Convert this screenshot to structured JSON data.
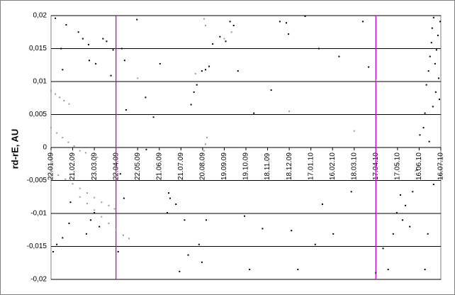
{
  "chart_data": {
    "type": "scatter",
    "y_label": "rd-rE, AU",
    "xlim": [
      0,
      540
    ],
    "ylim": [
      -0.02,
      0.02
    ],
    "xticks": [
      {
        "value": 0,
        "label": "22.01.09"
      },
      {
        "value": 30,
        "label": "21.02.09"
      },
      {
        "value": 60,
        "label": "23.03.09"
      },
      {
        "value": 90,
        "label": "22.04.09"
      },
      {
        "value": 120,
        "label": "22.05.09"
      },
      {
        "value": 150,
        "label": "21.06.09"
      },
      {
        "value": 180,
        "label": "21.07.09"
      },
      {
        "value": 210,
        "label": "20.08.09"
      },
      {
        "value": 240,
        "label": "19.09.09"
      },
      {
        "value": 270,
        "label": "19.10.09"
      },
      {
        "value": 300,
        "label": "18.11.09"
      },
      {
        "value": 330,
        "label": "18.12.09"
      },
      {
        "value": 360,
        "label": "17.01.10"
      },
      {
        "value": 390,
        "label": "16.02.10"
      },
      {
        "value": 420,
        "label": "18.03.10"
      },
      {
        "value": 450,
        "label": "17.04.10"
      },
      {
        "value": 480,
        "label": "17.05.10"
      },
      {
        "value": 510,
        "label": "16.06.10"
      },
      {
        "value": 540,
        "label": "16.07.10"
      }
    ],
    "yticks": [
      {
        "value": 0.02,
        "label": "0,02"
      },
      {
        "value": 0.015,
        "label": "0,015"
      },
      {
        "value": 0.01,
        "label": "0,01"
      },
      {
        "value": 0.005,
        "label": "0,005"
      },
      0,
      {
        "value": -0.005,
        "label": "-0,005"
      },
      {
        "value": -0.01,
        "label": "-0,01"
      },
      {
        "value": -0.015,
        "label": "-0,015"
      },
      {
        "value": -0.02,
        "label": "-0,02"
      }
    ],
    "grid": true,
    "vlines": [
      90,
      450
    ],
    "vline_color": "#cc00cc",
    "series": [
      {
        "color": "#000000",
        "x": [
          6,
          21,
          14,
          16,
          38,
          44,
          52,
          53,
          62,
          72,
          77,
          83,
          86,
          98,
          102,
          104,
          119,
          131,
          132,
          142,
          151,
          161,
          163,
          165,
          173,
          178,
          185,
          190,
          194,
          198,
          202,
          209,
          214,
          219,
          205,
          209,
          215,
          224,
          234,
          242,
          248,
          253,
          259,
          268,
          275,
          281,
          293,
          305,
          317,
          326,
          329,
          333,
          342,
          352,
          366,
          371,
          376,
          391,
          399,
          416,
          432,
          440,
          450,
          460,
          467,
          474,
          479,
          484,
          487,
          491,
          497,
          501,
          507,
          511,
          516,
          518,
          520,
          523,
          525,
          527,
          528,
          530,
          532,
          534,
          536,
          537,
          538,
          539,
          533,
          529,
          524,
          530,
          522,
          518,
          3,
          8,
          16,
          25,
          27,
          49,
          55,
          67,
          60,
          93,
          101,
          96
        ],
        "values": [
          0.0196,
          0.0186,
          0.015,
          0.0118,
          0.0175,
          0.0165,
          0.0156,
          0.0132,
          0.0127,
          0.0165,
          0.0161,
          0.0109,
          0.0148,
          0.015,
          0.0132,
          0.0057,
          0.0194,
          0.0076,
          -0.0003,
          0.0046,
          0.0127,
          -0.0099,
          -0.0069,
          -0.0077,
          -0.0086,
          -0.0188,
          -0.011,
          -0.0163,
          0.0065,
          0.0084,
          0.0095,
          0.0116,
          0.0118,
          0.0123,
          -0.0147,
          -0.0174,
          -0.011,
          0.0157,
          0.0168,
          0.0161,
          0.0191,
          0.0185,
          0.0116,
          -0.0104,
          -0.0185,
          0.0052,
          -0.0123,
          0.0087,
          0.0191,
          0.0189,
          0.0172,
          -0.0126,
          -0.0185,
          0.0199,
          -0.0147,
          0.015,
          -0.0086,
          -0.0131,
          0.0138,
          -0.0067,
          0.0191,
          0.0122,
          -0.019,
          -0.0153,
          -0.0185,
          -0.0131,
          -0.0099,
          -0.0072,
          -0.011,
          -0.0088,
          -0.012,
          -0.0067,
          -0.0034,
          0.0019,
          0.003,
          0.0052,
          0.0095,
          0.0116,
          0.0138,
          0.0159,
          0.0181,
          0.0197,
          0.0127,
          0.0148,
          0.017,
          0.0105,
          0.0073,
          0.0191,
          0.0084,
          0.0062,
          0.0009,
          -0.0056,
          -0.0131,
          -0.0185,
          -0.0158,
          -0.0147,
          -0.0137,
          -0.0115,
          -0.0083,
          -0.0131,
          -0.011,
          -0.012,
          -0.0099,
          -0.0158,
          -0.0077,
          -0.004
        ]
      },
      {
        "color": "#9a9a9a",
        "x": [
          0,
          6,
          12,
          18,
          25,
          0,
          8,
          16,
          24,
          32,
          40,
          48,
          56,
          64,
          0,
          10,
          20,
          30,
          40,
          50,
          60,
          70,
          80,
          88,
          40,
          50,
          60,
          70,
          80,
          90,
          100,
          108,
          208,
          210,
          212,
          214,
          216,
          212,
          214,
          240,
          250,
          120,
          200,
          330,
          420,
          450,
          480,
          505
        ],
        "values": [
          0.0086,
          0.0081,
          0.0076,
          0.0071,
          0.0066,
          0.003,
          0.0022,
          0.0015,
          0.0008,
          0.0002,
          -0.0005,
          -0.0008,
          -0.0012,
          -0.0015,
          -0.0035,
          -0.0042,
          -0.0048,
          -0.0055,
          -0.0062,
          -0.0069,
          -0.0076,
          -0.0083,
          -0.0088,
          -0.0093,
          -0.0075,
          -0.0085,
          -0.0095,
          -0.0105,
          -0.0115,
          -0.0125,
          -0.0133,
          -0.0138,
          -0.0025,
          -0.0015,
          -0.0005,
          0.0005,
          0.0015,
          0.0195,
          0.0185,
          0.0165,
          0.0175,
          0.0105,
          0.0112,
          0.0055,
          0.0025,
          0.0102,
          -0.0025,
          -0.0035
        ]
      }
    ]
  }
}
